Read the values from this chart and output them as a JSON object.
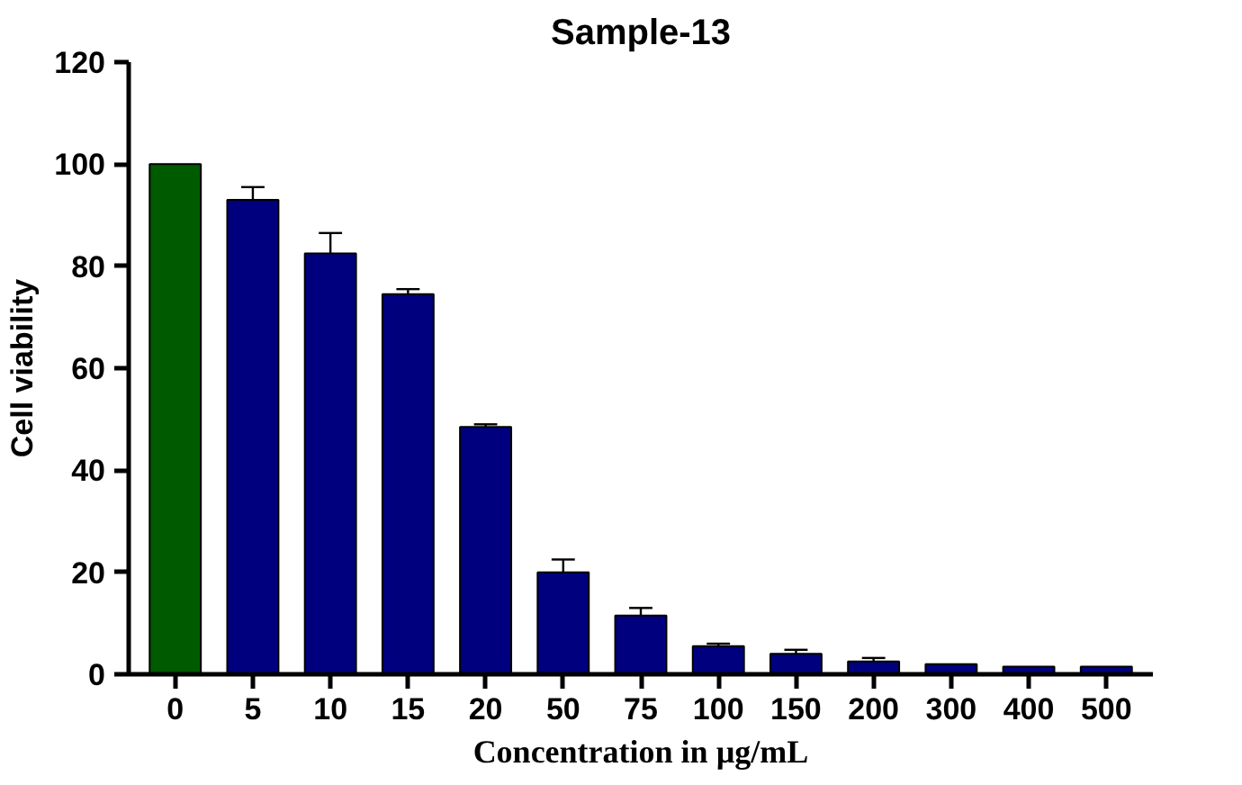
{
  "chart_data": {
    "type": "bar",
    "title": "Sample-13",
    "xlabel": "Concentration in µg/mL",
    "ylabel": "Cell viability",
    "categories": [
      "0",
      "5",
      "10",
      "15",
      "20",
      "50",
      "75",
      "100",
      "150",
      "200",
      "300",
      "400",
      "500"
    ],
    "values": [
      100,
      93,
      82.5,
      74.5,
      48.5,
      20,
      11.5,
      5.5,
      4,
      2.5,
      2,
      1.5,
      1.5
    ],
    "colors": [
      "#005a00",
      "#00007f",
      "#00007f",
      "#00007f",
      "#00007f",
      "#00007f",
      "#00007f",
      "#00007f",
      "#00007f",
      "#00007f",
      "#00007f",
      "#00007f",
      "#00007f"
    ],
    "errors": [
      null,
      [
        93,
        95.5
      ],
      [
        82.5,
        86.5
      ],
      [
        74.5,
        75.5
      ],
      [
        48.5,
        49
      ],
      [
        20,
        22.5
      ],
      [
        11.5,
        13
      ],
      [
        5.5,
        6
      ],
      [
        4,
        4.8
      ],
      [
        2.5,
        3.2
      ],
      null,
      null,
      null
    ],
    "ylim": [
      0,
      120
    ],
    "yticks": [
      0,
      20,
      40,
      60,
      80,
      100,
      120
    ],
    "grid": false
  }
}
